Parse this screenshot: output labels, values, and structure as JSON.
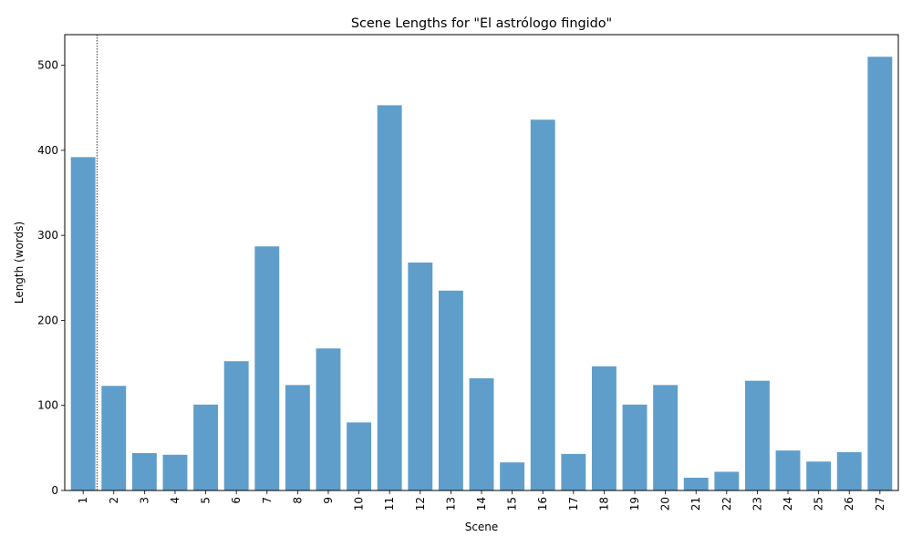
{
  "chart_data": {
    "type": "bar",
    "title": "Scene Lengths for \"El astrólogo fingido\"",
    "xlabel": "Scene",
    "ylabel": "Length (words)",
    "categories": [
      "1",
      "2",
      "3",
      "4",
      "5",
      "6",
      "7",
      "8",
      "9",
      "10",
      "11",
      "12",
      "13",
      "14",
      "15",
      "16",
      "17",
      "18",
      "19",
      "20",
      "21",
      "22",
      "23",
      "24",
      "25",
      "26",
      "27"
    ],
    "values": [
      392,
      123,
      44,
      42,
      101,
      152,
      287,
      124,
      167,
      80,
      453,
      268,
      235,
      132,
      33,
      436,
      43,
      146,
      101,
      124,
      15,
      22,
      129,
      47,
      34,
      45,
      510
    ],
    "ylim": [
      0,
      536
    ],
    "yticks": [
      0,
      100,
      200,
      300,
      400,
      500
    ],
    "bar_color": "#5f9ecb",
    "marker_line": {
      "x": 0.45,
      "style": "dotted",
      "color": "#000000"
    },
    "grid": false,
    "legend": "none"
  }
}
